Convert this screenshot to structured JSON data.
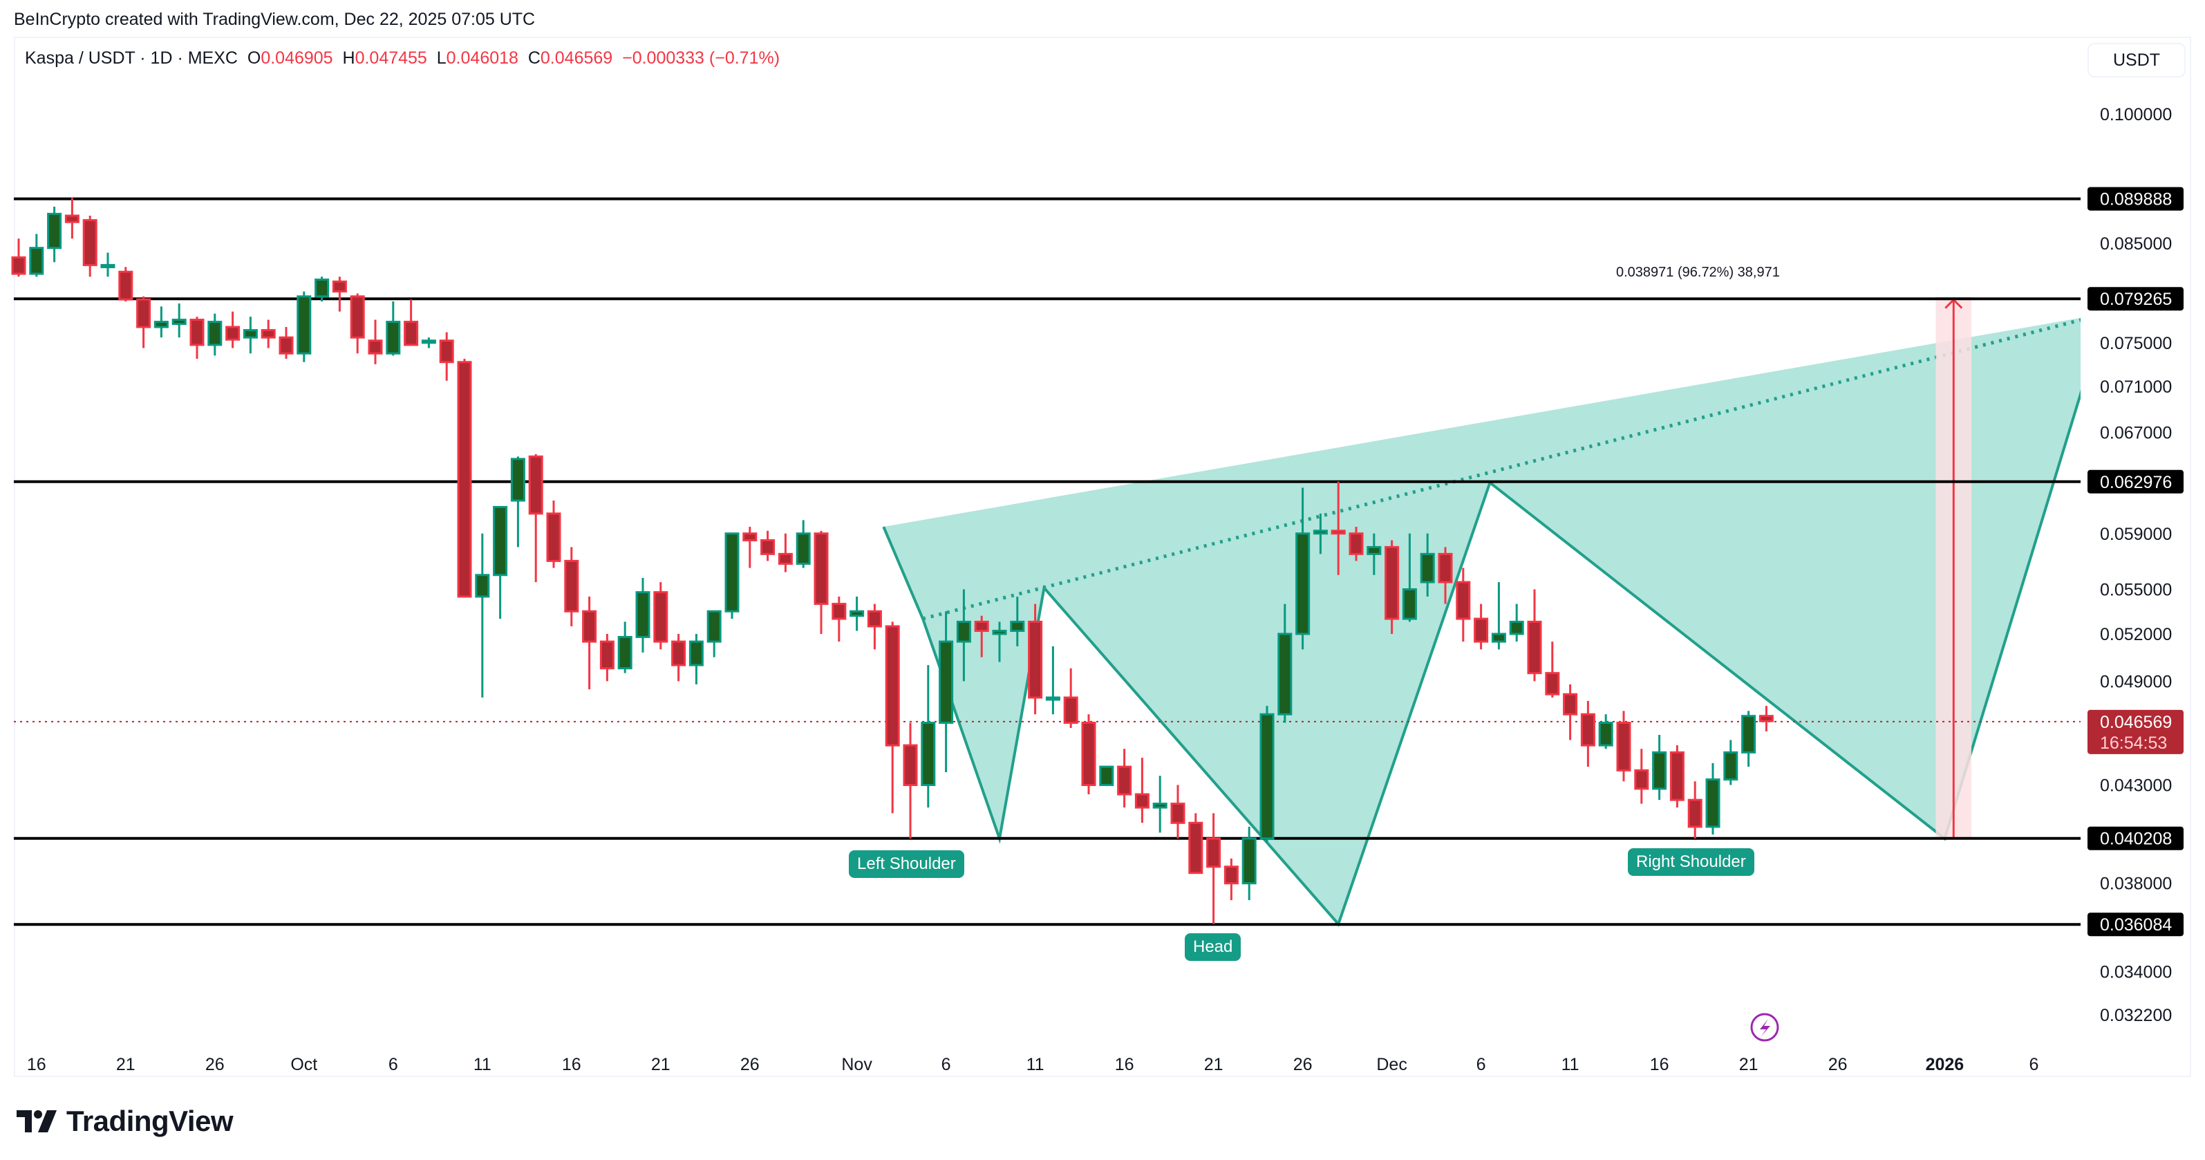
{
  "watermark": "BeInCrypto created with TradingView.com, Dec 22, 2025 07:05 UTC",
  "legend": {
    "symbol": "Kaspa / USDT · 1D · MEXC",
    "open_label": "O",
    "open": "0.046905",
    "high_label": "H",
    "high": "0.047455",
    "low_label": "L",
    "low": "0.046018",
    "close_label": "C",
    "close": "0.046569",
    "change": "−0.000333 (−0.71%)"
  },
  "currency_button": "USDT",
  "colors": {
    "up_body": "#1b5e20",
    "up_border": "#089981",
    "down_body": "#b22833",
    "down_border": "#f23645",
    "pattern_fill": "#b2e5dc",
    "pattern_stroke": "#22a08b",
    "label_bg": "#159c86",
    "level_line": "#000000",
    "last_price_bg": "#b22833",
    "measure_fill": "#fde0e3",
    "measure_line": "#f23645",
    "alert_icon": "#9c27b0"
  },
  "price_axis": {
    "ticks": [
      "0.100000",
      "0.085000",
      "0.075000",
      "0.071000",
      "0.067000",
      "0.059000",
      "0.055000",
      "0.052000",
      "0.049000",
      "0.043000",
      "0.038000",
      "0.034000",
      "0.032200"
    ],
    "level_labels": [
      "0.089888",
      "0.079265",
      "0.062976",
      "0.040208",
      "0.036084"
    ],
    "last_price": "0.046569",
    "countdown": "16:54:53"
  },
  "time_axis": {
    "ticks": [
      {
        "label": "16",
        "day": 1
      },
      {
        "label": "21",
        "day": 6
      },
      {
        "label": "26",
        "day": 11
      },
      {
        "label": "Oct",
        "day": 16
      },
      {
        "label": "6",
        "day": 21
      },
      {
        "label": "11",
        "day": 26
      },
      {
        "label": "16",
        "day": 31
      },
      {
        "label": "21",
        "day": 36
      },
      {
        "label": "26",
        "day": 41
      },
      {
        "label": "Nov",
        "day": 47
      },
      {
        "label": "6",
        "day": 52
      },
      {
        "label": "11",
        "day": 57
      },
      {
        "label": "16",
        "day": 62
      },
      {
        "label": "21",
        "day": 67
      },
      {
        "label": "26",
        "day": 72
      },
      {
        "label": "Dec",
        "day": 77
      },
      {
        "label": "6",
        "day": 82
      },
      {
        "label": "11",
        "day": 87
      },
      {
        "label": "16",
        "day": 92
      },
      {
        "label": "21",
        "day": 97
      },
      {
        "label": "26",
        "day": 102
      },
      {
        "label": "2026",
        "day": 108,
        "bold": true
      },
      {
        "label": "6",
        "day": 113
      }
    ]
  },
  "annotations": {
    "left_shoulder": "Left Shoulder",
    "head": "Head",
    "right_shoulder": "Right Shoulder",
    "measure": "0.038971 (96.72%) 38,971"
  },
  "logo": "TradingView",
  "chart_data": {
    "type": "candlestick",
    "title": "Kaspa / USDT · 1D · MEXC",
    "xlabel": "",
    "ylabel": "USDT",
    "scale": "log",
    "ylim": [
      0.0315,
      0.104
    ],
    "start_date": "2025-09-15",
    "horizontal_levels": [
      0.089888,
      0.079265,
      0.062976,
      0.040208,
      0.036084
    ],
    "last_price": 0.046569,
    "pattern": {
      "name": "Inverse Head and Shoulders",
      "points": [
        {
          "day": 48.5,
          "price": 0.0595
        },
        {
          "day": 50.7,
          "price": 0.053
        },
        {
          "day": 55,
          "price": 0.0402
        },
        {
          "day": 57.5,
          "price": 0.0551
        },
        {
          "day": 74,
          "price": 0.0361
        },
        {
          "day": 82.5,
          "price": 0.0629
        },
        {
          "day": 108,
          "price": 0.0402
        },
        {
          "day": 117,
          "price": 0.0778
        }
      ],
      "neckline": [
        {
          "day": 50.7,
          "price": 0.053
        },
        {
          "day": 117,
          "price": 0.0778
        }
      ]
    },
    "measure": {
      "from_day": 107.5,
      "to_day": 109.5,
      "from_price": 0.0402,
      "to_price": 0.0793,
      "text": "0.038971 (96.72%) 38,971"
    },
    "candles": [
      [
        0,
        0.0835,
        0.0855,
        0.0815,
        0.0818
      ],
      [
        1,
        0.0818,
        0.086,
        0.0815,
        0.0845
      ],
      [
        2,
        0.0845,
        0.089,
        0.083,
        0.0882
      ],
      [
        3,
        0.088,
        0.09,
        0.0855,
        0.0873
      ],
      [
        4,
        0.0875,
        0.088,
        0.0815,
        0.0827
      ],
      [
        5,
        0.0827,
        0.084,
        0.0815,
        0.0827
      ],
      [
        6,
        0.082,
        0.0825,
        0.079,
        0.0792
      ],
      [
        7,
        0.0792,
        0.0795,
        0.0745,
        0.0765
      ],
      [
        8,
        0.0765,
        0.0785,
        0.0755,
        0.077
      ],
      [
        9,
        0.0768,
        0.0788,
        0.0755,
        0.0772
      ],
      [
        10,
        0.0772,
        0.0775,
        0.0735,
        0.0748
      ],
      [
        11,
        0.0748,
        0.0778,
        0.0738,
        0.077
      ],
      [
        12,
        0.0765,
        0.078,
        0.0745,
        0.0753
      ],
      [
        13,
        0.0755,
        0.0775,
        0.074,
        0.0762
      ],
      [
        14,
        0.0762,
        0.0772,
        0.0745,
        0.0755
      ],
      [
        15,
        0.0755,
        0.0765,
        0.0735,
        0.074
      ],
      [
        16,
        0.074,
        0.08,
        0.0732,
        0.0795
      ],
      [
        17,
        0.0795,
        0.0815,
        0.079,
        0.0812
      ],
      [
        18,
        0.081,
        0.0815,
        0.078,
        0.08
      ],
      [
        19,
        0.0795,
        0.0798,
        0.074,
        0.0755
      ],
      [
        20,
        0.0752,
        0.0772,
        0.073,
        0.074
      ],
      [
        21,
        0.074,
        0.079,
        0.0738,
        0.077
      ],
      [
        22,
        0.077,
        0.0792,
        0.0755,
        0.0748
      ],
      [
        23,
        0.075,
        0.0755,
        0.0745,
        0.0752
      ],
      [
        24,
        0.0752,
        0.076,
        0.0715,
        0.0732
      ],
      [
        25,
        0.0732,
        0.0735,
        0.07,
        0.0545
      ],
      [
        26,
        0.0545,
        0.059,
        0.048,
        0.056
      ],
      [
        27,
        0.056,
        0.0605,
        0.053,
        0.061
      ],
      [
        28,
        0.0615,
        0.065,
        0.058,
        0.0648
      ],
      [
        29,
        0.065,
        0.0652,
        0.0555,
        0.0605
      ],
      [
        30,
        0.0605,
        0.0615,
        0.0565,
        0.057
      ],
      [
        31,
        0.057,
        0.058,
        0.0525,
        0.0535
      ],
      [
        32,
        0.0535,
        0.0545,
        0.0485,
        0.0515
      ],
      [
        33,
        0.0515,
        0.052,
        0.049,
        0.0498
      ],
      [
        34,
        0.0498,
        0.0528,
        0.0495,
        0.0518
      ],
      [
        35,
        0.0518,
        0.0558,
        0.0508,
        0.0548
      ],
      [
        36,
        0.0548,
        0.0555,
        0.051,
        0.0515
      ],
      [
        37,
        0.0515,
        0.052,
        0.049,
        0.05
      ],
      [
        38,
        0.05,
        0.052,
        0.0488,
        0.0515
      ],
      [
        39,
        0.0515,
        0.0528,
        0.0505,
        0.0535
      ],
      [
        40,
        0.0535,
        0.059,
        0.053,
        0.059
      ],
      [
        41,
        0.059,
        0.0595,
        0.0565,
        0.0585
      ],
      [
        42,
        0.0585,
        0.0592,
        0.057,
        0.0575
      ],
      [
        43,
        0.0575,
        0.059,
        0.0562,
        0.0568
      ],
      [
        44,
        0.0568,
        0.06,
        0.0565,
        0.059
      ],
      [
        45,
        0.059,
        0.0592,
        0.052,
        0.054
      ],
      [
        46,
        0.054,
        0.0545,
        0.0515,
        0.053
      ],
      [
        47,
        0.0532,
        0.0545,
        0.0522,
        0.0535
      ],
      [
        48,
        0.0535,
        0.054,
        0.051,
        0.0525
      ],
      [
        49,
        0.0525,
        0.0528,
        0.0415,
        0.0452
      ],
      [
        50,
        0.0452,
        0.0465,
        0.0402,
        0.043
      ],
      [
        51,
        0.043,
        0.05,
        0.0418,
        0.0465
      ],
      [
        52,
        0.0465,
        0.0535,
        0.0437,
        0.0515
      ],
      [
        53,
        0.0515,
        0.055,
        0.049,
        0.0528
      ],
      [
        54,
        0.0528,
        0.0532,
        0.0505,
        0.0522
      ],
      [
        55,
        0.052,
        0.0528,
        0.0502,
        0.0522
      ],
      [
        56,
        0.0522,
        0.0545,
        0.0512,
        0.0528
      ],
      [
        57,
        0.0528,
        0.054,
        0.047,
        0.048
      ],
      [
        58,
        0.048,
        0.0512,
        0.047,
        0.048
      ],
      [
        59,
        0.048,
        0.0498,
        0.0462,
        0.0465
      ],
      [
        60,
        0.0465,
        0.047,
        0.0425,
        0.043
      ],
      [
        61,
        0.043,
        0.044,
        0.043,
        0.044
      ],
      [
        62,
        0.044,
        0.045,
        0.0418,
        0.0425
      ],
      [
        63,
        0.0425,
        0.0445,
        0.041,
        0.0418
      ],
      [
        64,
        0.0418,
        0.0435,
        0.0405,
        0.042
      ],
      [
        65,
        0.042,
        0.043,
        0.0402,
        0.041
      ],
      [
        66,
        0.041,
        0.0415,
        0.0398,
        0.0385
      ],
      [
        67,
        0.0402,
        0.0415,
        0.0361,
        0.0388
      ],
      [
        68,
        0.0388,
        0.0392,
        0.0372,
        0.038
      ],
      [
        69,
        0.038,
        0.0408,
        0.0372,
        0.0402
      ],
      [
        70,
        0.0402,
        0.0475,
        0.04,
        0.047
      ],
      [
        71,
        0.047,
        0.054,
        0.0465,
        0.052
      ],
      [
        72,
        0.052,
        0.0625,
        0.051,
        0.059
      ],
      [
        73,
        0.059,
        0.0605,
        0.0575,
        0.0592
      ],
      [
        74,
        0.0592,
        0.063,
        0.056,
        0.059
      ],
      [
        75,
        0.059,
        0.0595,
        0.057,
        0.0575
      ],
      [
        76,
        0.0575,
        0.059,
        0.056,
        0.058
      ],
      [
        77,
        0.058,
        0.0585,
        0.052,
        0.053
      ],
      [
        78,
        0.053,
        0.059,
        0.0528,
        0.055
      ],
      [
        79,
        0.0555,
        0.059,
        0.0545,
        0.0575
      ],
      [
        80,
        0.0575,
        0.058,
        0.054,
        0.0555
      ],
      [
        81,
        0.0555,
        0.0565,
        0.0515,
        0.053
      ],
      [
        82,
        0.053,
        0.054,
        0.051,
        0.0515
      ],
      [
        83,
        0.0515,
        0.0555,
        0.051,
        0.052
      ],
      [
        84,
        0.052,
        0.054,
        0.0515,
        0.0528
      ],
      [
        85,
        0.0528,
        0.055,
        0.049,
        0.0495
      ],
      [
        86,
        0.0495,
        0.0515,
        0.048,
        0.0482
      ],
      [
        87,
        0.0482,
        0.0488,
        0.0455,
        0.047
      ],
      [
        88,
        0.047,
        0.0478,
        0.044,
        0.0452
      ],
      [
        89,
        0.0452,
        0.047,
        0.045,
        0.0465
      ],
      [
        90,
        0.0465,
        0.0472,
        0.0432,
        0.0438
      ],
      [
        91,
        0.0438,
        0.045,
        0.042,
        0.0428
      ],
      [
        92,
        0.0428,
        0.0458,
        0.0422,
        0.0448
      ],
      [
        93,
        0.0448,
        0.0452,
        0.0418,
        0.0422
      ],
      [
        94,
        0.0422,
        0.0432,
        0.0402,
        0.0408
      ],
      [
        95,
        0.0408,
        0.0442,
        0.0404,
        0.0433
      ],
      [
        96,
        0.0433,
        0.0455,
        0.043,
        0.0448
      ],
      [
        97,
        0.0448,
        0.0472,
        0.044,
        0.0469
      ],
      [
        98,
        0.0469,
        0.0475,
        0.046,
        0.0466
      ]
    ]
  }
}
